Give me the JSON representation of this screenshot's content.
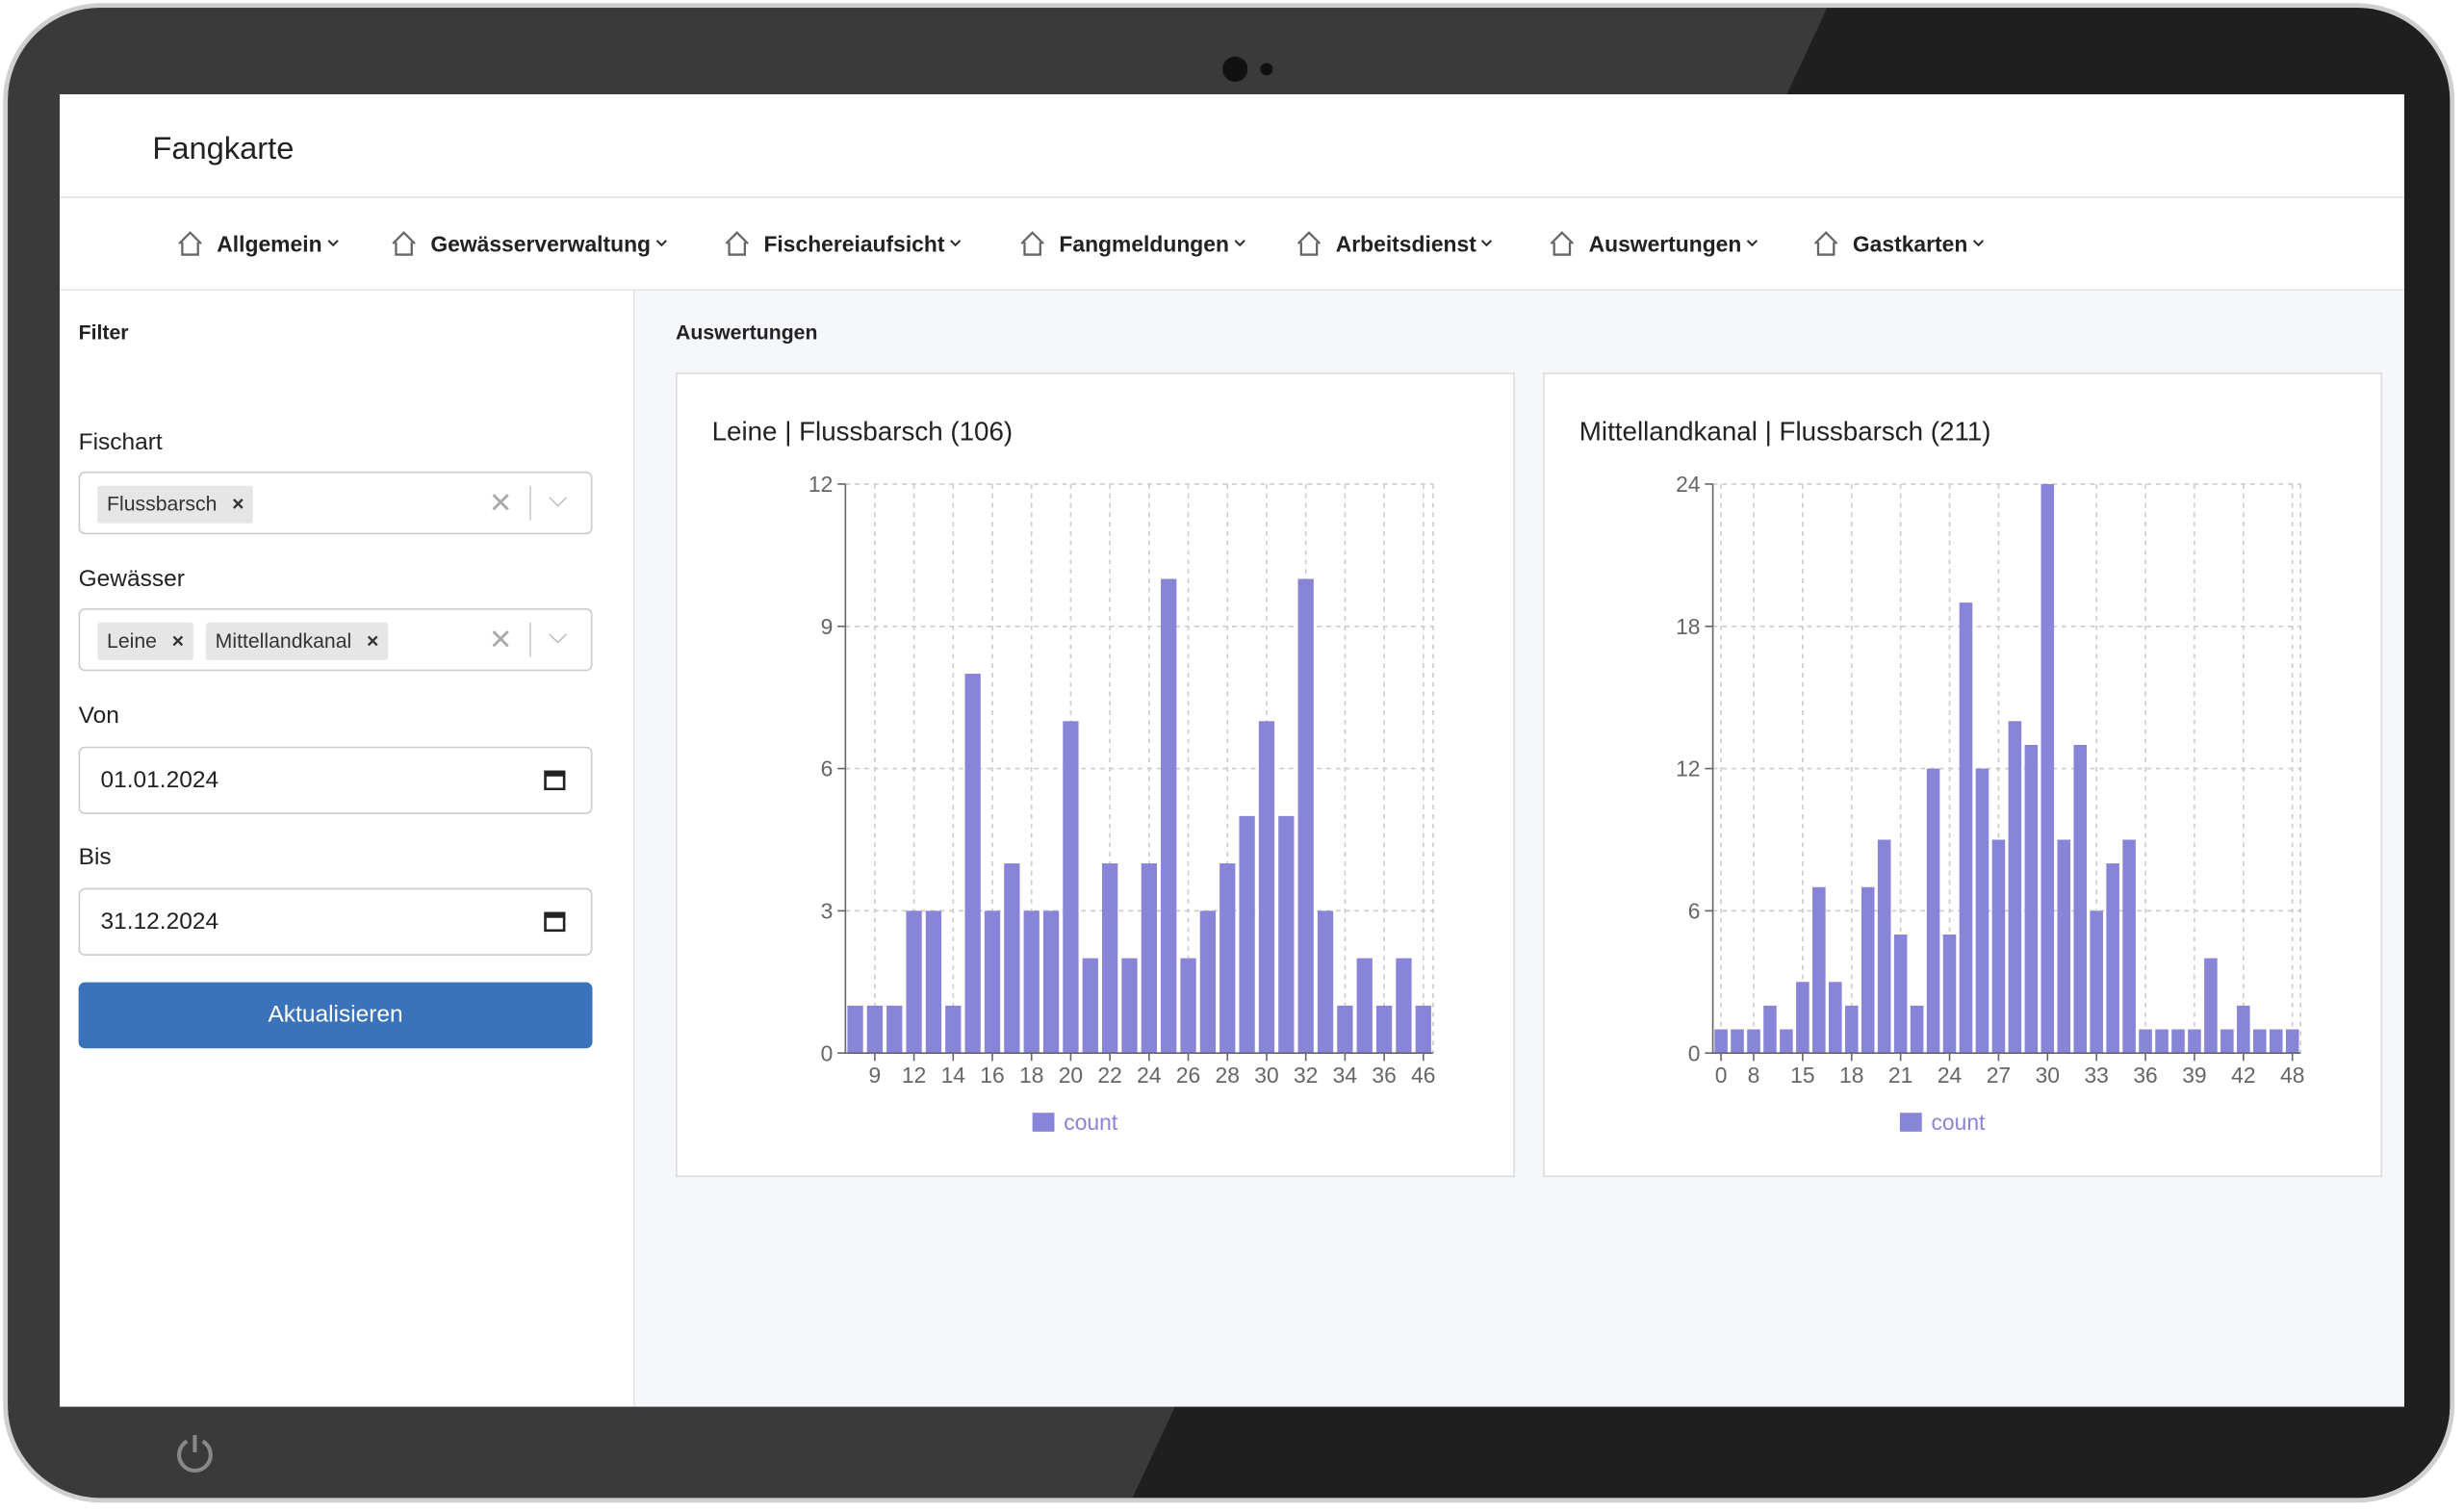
{
  "header": {
    "title": "Fangkarte"
  },
  "nav": {
    "items": [
      "Allgemein",
      "Gewässerverwaltung",
      "Fischereiaufsicht",
      "Fangmeldungen",
      "Arbeitsdienst",
      "Auswertungen",
      "Gastkarten"
    ]
  },
  "filter": {
    "title": "Filter",
    "fischart": {
      "label": "Fischart",
      "chips": [
        "Flussbarsch"
      ]
    },
    "gewaesser": {
      "label": "Gewässer",
      "chips": [
        "Leine",
        "Mittellandkanal"
      ]
    },
    "von": {
      "label": "Von",
      "value": "01.01.2024"
    },
    "bis": {
      "label": "Bis",
      "value": "31.12.2024"
    },
    "button": "Aktualisieren"
  },
  "section": {
    "title": "Auswertungen"
  },
  "chart_data": [
    {
      "type": "bar",
      "title": "Leine | Flussbarsch (106)",
      "categories": [
        null,
        "9",
        null,
        "12",
        null,
        "14",
        null,
        "16",
        null,
        "18",
        null,
        "20",
        null,
        "22",
        null,
        "24",
        null,
        "26",
        null,
        "28",
        null,
        "30",
        null,
        "32",
        null,
        "34",
        null,
        "36",
        null,
        "46"
      ],
      "series": [
        {
          "name": "count",
          "color": "#8884d8",
          "values": [
            1,
            1,
            1,
            3,
            3,
            1,
            8,
            3,
            4,
            3,
            3,
            7,
            2,
            4,
            2,
            4,
            10,
            2,
            3,
            4,
            5,
            7,
            5,
            10,
            3,
            1,
            2,
            1,
            2,
            1
          ]
        }
      ],
      "ylim": [
        0,
        12
      ],
      "yticks": [
        0,
        3,
        6,
        9,
        12
      ],
      "grid": true,
      "legend": "bottom"
    },
    {
      "type": "bar",
      "title": "Mittellandkanal | Flussbarsch (211)",
      "categories": [
        "0",
        null,
        "8",
        null,
        null,
        "15",
        null,
        null,
        "18",
        null,
        null,
        "21",
        null,
        null,
        "24",
        null,
        null,
        "27",
        null,
        null,
        "30",
        null,
        null,
        "33",
        null,
        null,
        "36",
        null,
        null,
        "39",
        null,
        null,
        "42",
        null,
        null,
        "48"
      ],
      "series": [
        {
          "name": "count",
          "color": "#8884d8",
          "values": [
            1,
            1,
            1,
            2,
            1,
            3,
            7,
            3,
            2,
            7,
            9,
            5,
            2,
            12,
            5,
            19,
            12,
            9,
            14,
            13,
            24,
            9,
            13,
            6,
            8,
            9,
            1,
            1,
            1,
            1,
            4,
            1,
            2,
            1,
            1,
            1
          ]
        }
      ],
      "ylim": [
        0,
        24
      ],
      "yticks": [
        0,
        6,
        12,
        18,
        24
      ],
      "grid": true,
      "legend": "bottom"
    }
  ]
}
